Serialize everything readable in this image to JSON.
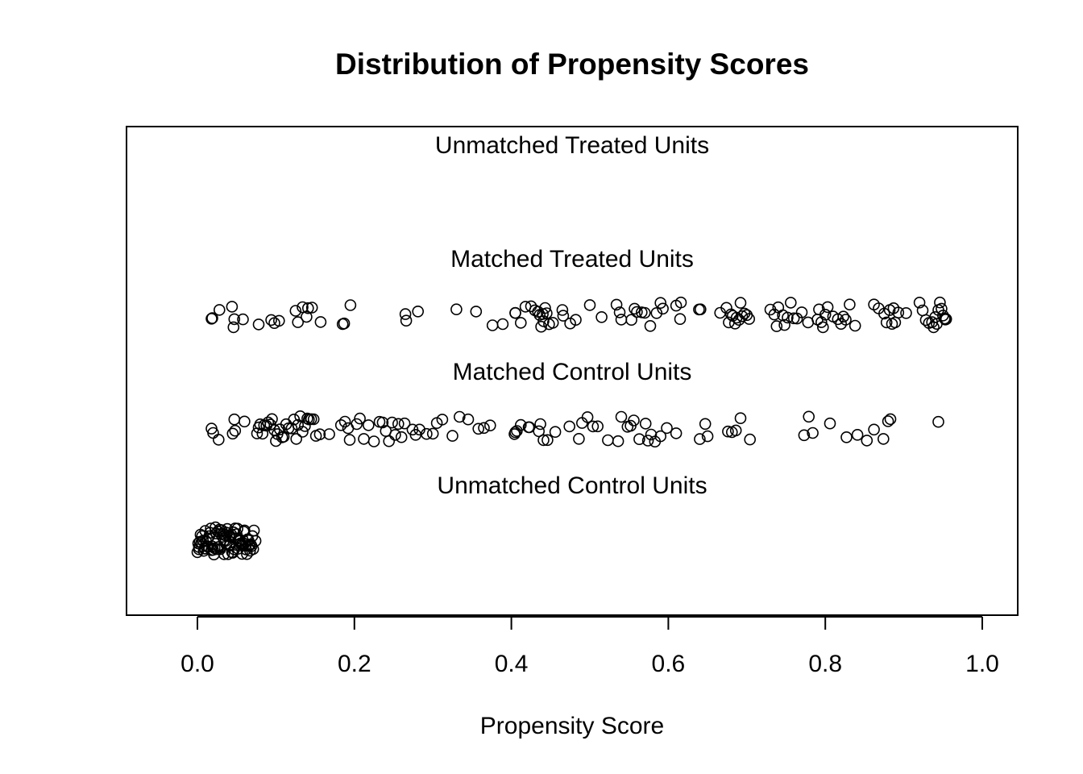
{
  "chart_data": {
    "type": "scatter",
    "title": "Distribution of Propensity Scores",
    "xlabel": "Propensity Score",
    "ylabel": "",
    "xlim": [
      -0.09,
      1.045
    ],
    "x_ticks": [
      "0.0",
      "0.2",
      "0.4",
      "0.6",
      "0.8",
      "1.0"
    ],
    "x_tick_values": [
      0.0,
      0.2,
      0.4,
      0.6,
      0.8,
      1.0
    ],
    "grid": false,
    "legend": "none",
    "point_color": "#000000",
    "groups": [
      {
        "name": "Unmatched Treated Units",
        "x": []
      },
      {
        "name": "Matched Treated Units",
        "x": [
          0.018,
          0.028,
          0.019,
          0.046,
          0.058,
          0.047,
          0.044,
          0.078,
          0.094,
          0.098,
          0.104,
          0.125,
          0.128,
          0.134,
          0.139,
          0.141,
          0.146,
          0.157,
          0.185,
          0.187,
          0.195,
          0.265,
          0.266,
          0.281,
          0.33,
          0.355,
          0.376,
          0.389,
          0.405,
          0.405,
          0.412,
          0.418,
          0.425,
          0.43,
          0.434,
          0.436,
          0.438,
          0.44,
          0.441,
          0.443,
          0.445,
          0.448,
          0.453,
          0.465,
          0.466,
          0.475,
          0.482,
          0.5,
          0.515,
          0.534,
          0.54,
          0.538,
          0.553,
          0.557,
          0.56,
          0.566,
          0.57,
          0.577,
          0.585,
          0.59,
          0.593,
          0.61,
          0.615,
          0.616,
          0.639,
          0.641,
          0.666,
          0.674,
          0.677,
          0.68,
          0.682,
          0.685,
          0.687,
          0.69,
          0.692,
          0.694,
          0.697,
          0.7,
          0.703,
          0.73,
          0.735,
          0.738,
          0.74,
          0.746,
          0.748,
          0.752,
          0.756,
          0.76,
          0.764,
          0.77,
          0.778,
          0.79,
          0.792,
          0.795,
          0.797,
          0.8,
          0.803,
          0.81,
          0.816,
          0.82,
          0.823,
          0.826,
          0.831,
          0.838,
          0.862,
          0.868,
          0.875,
          0.878,
          0.882,
          0.885,
          0.887,
          0.889,
          0.893,
          0.903,
          0.92,
          0.924,
          0.928,
          0.932,
          0.936,
          0.938,
          0.94,
          0.942,
          0.944,
          0.946,
          0.948,
          0.95,
          0.952,
          0.953,
          0.954
        ]
      },
      {
        "name": "Matched Control Units",
        "x": [
          0.018,
          0.02,
          0.027,
          0.045,
          0.047,
          0.048,
          0.06,
          0.076,
          0.078,
          0.08,
          0.083,
          0.085,
          0.088,
          0.09,
          0.093,
          0.095,
          0.098,
          0.1,
          0.102,
          0.105,
          0.108,
          0.11,
          0.113,
          0.116,
          0.12,
          0.123,
          0.126,
          0.128,
          0.131,
          0.134,
          0.137,
          0.14,
          0.142,
          0.145,
          0.148,
          0.151,
          0.156,
          0.168,
          0.183,
          0.188,
          0.192,
          0.194,
          0.203,
          0.207,
          0.212,
          0.218,
          0.225,
          0.232,
          0.236,
          0.24,
          0.244,
          0.248,
          0.252,
          0.256,
          0.26,
          0.264,
          0.274,
          0.278,
          0.283,
          0.292,
          0.3,
          0.305,
          0.312,
          0.325,
          0.334,
          0.345,
          0.358,
          0.365,
          0.373,
          0.404,
          0.405,
          0.407,
          0.412,
          0.422,
          0.423,
          0.435,
          0.437,
          0.441,
          0.446,
          0.456,
          0.474,
          0.486,
          0.49,
          0.497,
          0.504,
          0.51,
          0.523,
          0.536,
          0.54,
          0.548,
          0.552,
          0.556,
          0.563,
          0.571,
          0.574,
          0.578,
          0.583,
          0.59,
          0.598,
          0.61,
          0.64,
          0.647,
          0.65,
          0.676,
          0.681,
          0.686,
          0.692,
          0.704,
          0.773,
          0.779,
          0.784,
          0.806,
          0.827,
          0.841,
          0.853,
          0.862,
          0.874,
          0.88,
          0.883,
          0.944
        ]
      },
      {
        "name": "Unmatched Control Units",
        "x": [
          0.0,
          0.002,
          0.004,
          0.006,
          0.008,
          0.01,
          0.012,
          0.014,
          0.016,
          0.018,
          0.02,
          0.022,
          0.024,
          0.026,
          0.028,
          0.03,
          0.032,
          0.034,
          0.036,
          0.038,
          0.04,
          0.042,
          0.044,
          0.046,
          0.048,
          0.05,
          0.052,
          0.054,
          0.056,
          0.058,
          0.06,
          0.062,
          0.064,
          0.066,
          0.068,
          0.07,
          0.072,
          0.001,
          0.005,
          0.009,
          0.013,
          0.017,
          0.021,
          0.025,
          0.029,
          0.033,
          0.037,
          0.041,
          0.045,
          0.049,
          0.053,
          0.057,
          0.061,
          0.065,
          0.069,
          0.003,
          0.011,
          0.019,
          0.027,
          0.035,
          0.043,
          0.051,
          0.059,
          0.067,
          0.007,
          0.015,
          0.023,
          0.031,
          0.039,
          0.047,
          0.055,
          0.063,
          0.071,
          0.002,
          0.018,
          0.034,
          0.05,
          0.066,
          0.01,
          0.026,
          0.042,
          0.058,
          0.074
        ]
      }
    ]
  }
}
